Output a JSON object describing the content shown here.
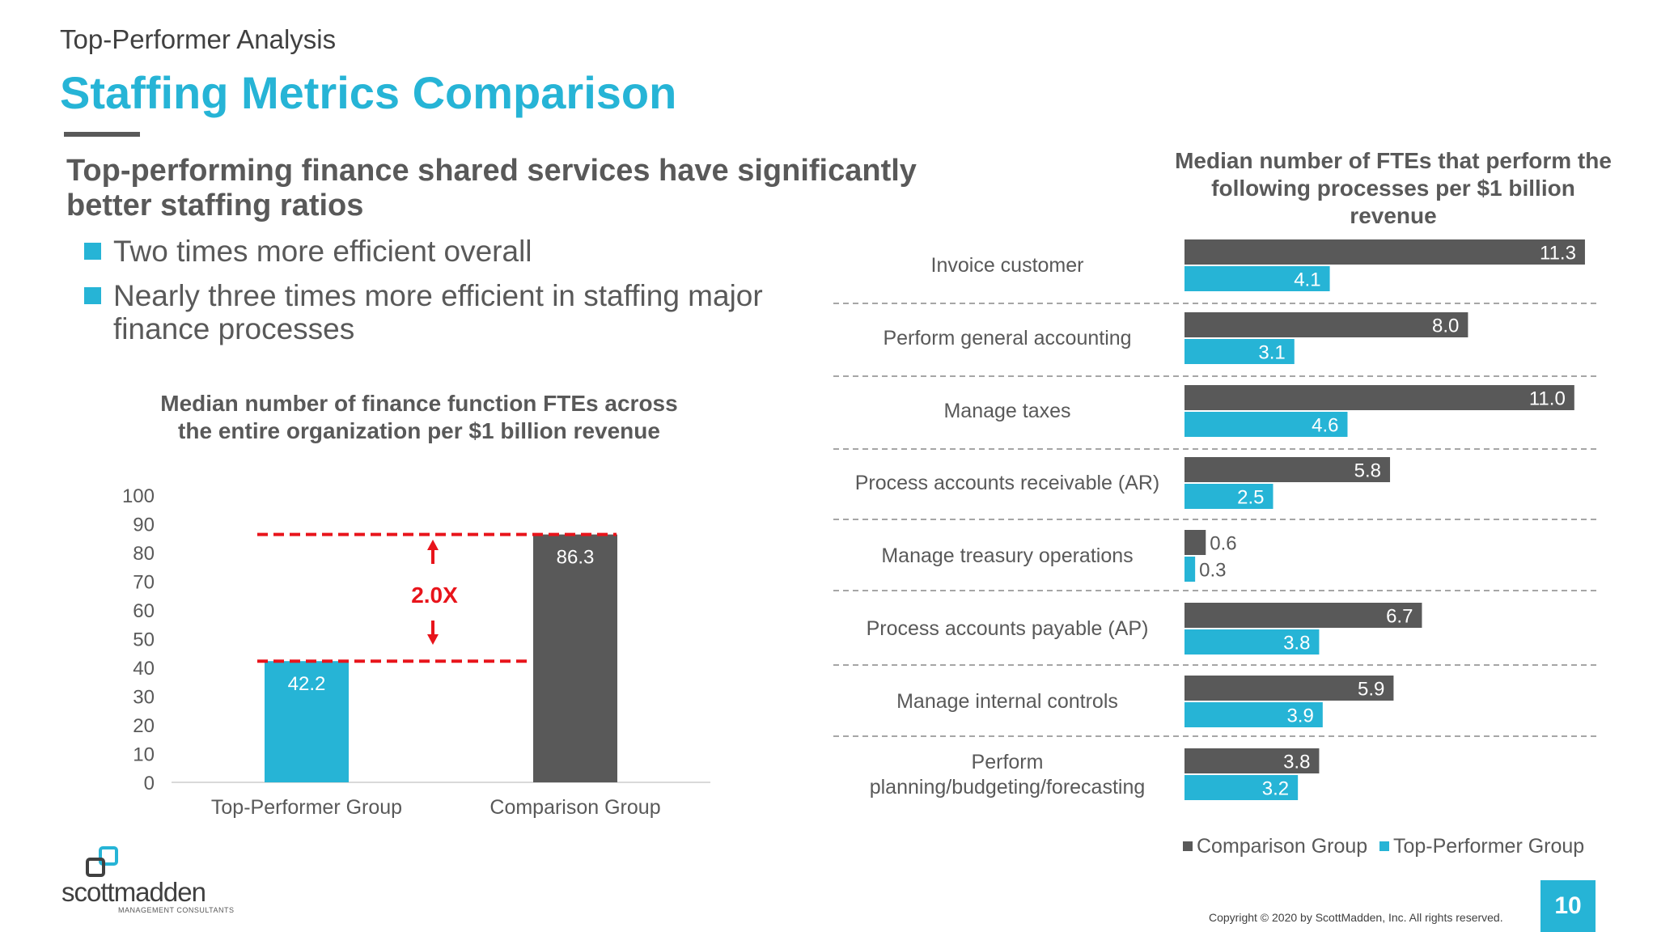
{
  "header": {
    "supertitle": "Top-Performer Analysis",
    "title": "Staffing Metrics Comparison"
  },
  "summary": {
    "headline": "Top-performing finance shared services have significantly better staffing ratios",
    "bullets": [
      "Two times more efficient overall",
      "Nearly three times more efficient in staffing major finance processes"
    ]
  },
  "chart_data": [
    {
      "type": "bar",
      "title": "Median number of finance function FTEs across the entire organization per $1 billion revenue",
      "categories": [
        "Top-Performer Group",
        "Comparison Group"
      ],
      "values": [
        42.2,
        86.3
      ],
      "value_labels": [
        "42.2",
        "86.3"
      ],
      "ylim": [
        0,
        100
      ],
      "yticks": [
        0,
        10,
        20,
        30,
        40,
        50,
        60,
        70,
        80,
        90,
        100
      ],
      "xlabel": "",
      "ylabel": "",
      "grid": false,
      "annotation": "2.0X",
      "colors": {
        "Top-Performer Group": "#26B4D6",
        "Comparison Group": "#595959",
        "annotation": "#E8141B"
      }
    },
    {
      "type": "bar",
      "orientation": "horizontal",
      "title": "Median number of FTEs that perform the following processes per $1 billion revenue",
      "categories": [
        "Invoice customer",
        "Perform general accounting",
        "Manage taxes",
        "Process accounts receivable (AR)",
        "Manage treasury operations",
        "Process accounts payable (AP)",
        "Manage internal controls",
        "Perform planning/budgeting/forecasting"
      ],
      "category_lines": [
        [
          "Invoice customer"
        ],
        [
          "Perform general accounting"
        ],
        [
          "Manage taxes"
        ],
        [
          "Process accounts receivable (AR)"
        ],
        [
          "Manage treasury operations"
        ],
        [
          "Process accounts payable (AP)"
        ],
        [
          "Manage internal controls"
        ],
        [
          "Perform",
          "planning/budgeting/forecasting"
        ]
      ],
      "series": [
        {
          "name": "Comparison Group",
          "color": "#595959",
          "values": [
            11.3,
            8.0,
            11.0,
            5.8,
            0.6,
            6.7,
            5.9,
            3.8
          ],
          "labels": [
            "11.3",
            "8.0",
            "11.0",
            "5.8",
            "0.6",
            "6.7",
            "5.9",
            "3.8"
          ]
        },
        {
          "name": "Top-Performer Group",
          "color": "#26B4D6",
          "values": [
            4.1,
            3.1,
            4.6,
            2.5,
            0.3,
            3.8,
            3.9,
            3.2
          ],
          "labels": [
            "4.1",
            "3.1",
            "4.6",
            "2.5",
            "0.3",
            "3.8",
            "3.9",
            "3.2"
          ]
        }
      ],
      "xlim": [
        0,
        12
      ],
      "legend": "bottom",
      "legend_entries": [
        "Comparison Group",
        "Top-Performer Group"
      ]
    }
  ],
  "footer": {
    "logo_text": "scottmadden",
    "logo_subtext": "MANAGEMENT CONSULTANTS",
    "copyright": "Copyright © 2020 by ScottMadden, Inc. All rights reserved.",
    "page_number": "10"
  }
}
